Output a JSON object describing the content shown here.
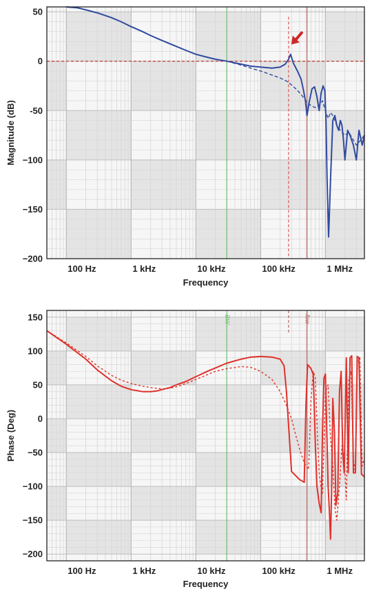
{
  "chart_data": [
    {
      "type": "line",
      "xscale": "log",
      "xlim": [
        50,
        4000000
      ],
      "ylim": [
        -200,
        55
      ],
      "xlabel": "Frequency",
      "ylabel": "Magnitude (dB)",
      "xticks": [
        {
          "value": 100,
          "label": "100 Hz"
        },
        {
          "value": 1000,
          "label": "1 kHz"
        },
        {
          "value": 10000,
          "label": "10 kHz"
        },
        {
          "value": 100000,
          "label": "100 kHz"
        },
        {
          "value": 1000000,
          "label": "1 MHz"
        }
      ],
      "yticks": [
        {
          "value": 50,
          "label": "50"
        },
        {
          "value": 0,
          "label": "0"
        },
        {
          "value": -50,
          "label": "-50"
        },
        {
          "value": -100,
          "label": "−100"
        },
        {
          "value": -150,
          "label": "−150"
        },
        {
          "value": -200,
          "label": "−200"
        }
      ],
      "grid": true,
      "reference_lines": [
        {
          "axis": "y",
          "value": 0,
          "style": "dashed",
          "color": "#c0392b"
        },
        {
          "axis": "x",
          "value": 30000,
          "style": "solid",
          "color": "#6fbf6f"
        },
        {
          "axis": "x",
          "value": 270000,
          "style": "dashed",
          "color": "#d9534f",
          "y_range": [
            -200,
            45
          ]
        },
        {
          "axis": "x",
          "value": 520000,
          "style": "solid",
          "color": "#b5645f"
        }
      ],
      "annotations": [
        {
          "type": "arrow",
          "color": "#cc2a2a",
          "x": 290000,
          "y": 12
        }
      ],
      "series": [
        {
          "style": "solid",
          "color": "#2f4aa0",
          "x": [
            100,
            150,
            200,
            300,
            500,
            700,
            1000,
            1500,
            2000,
            3000,
            5000,
            7000,
            10000,
            15000,
            20000,
            30000,
            50000,
            70000,
            100000,
            150000,
            200000,
            240000,
            270000,
            290000,
            320000,
            370000,
            420000,
            460000,
            490000,
            520000,
            560000,
            620000,
            680000,
            740000,
            800000,
            860000,
            920000,
            980000,
            1020000,
            1060000,
            1120000,
            1200000,
            1300000,
            1400000,
            1500000,
            1600000,
            1700000,
            1800000,
            1900000,
            2000000,
            2200000,
            2400000,
            2700000,
            3000000,
            3300000,
            3700000,
            4000000
          ],
          "y": [
            55,
            54,
            52,
            49,
            44,
            40,
            35,
            30,
            26,
            21,
            15,
            11,
            7,
            4,
            2,
            0,
            -3,
            -5,
            -6,
            -7,
            -6,
            -3,
            2,
            7,
            -2,
            -10,
            -18,
            -30,
            -40,
            -55,
            -42,
            -28,
            -26,
            -36,
            -50,
            -32,
            -25,
            -30,
            -60,
            -120,
            -178,
            -120,
            -60,
            -55,
            -65,
            -70,
            -60,
            -65,
            -80,
            -100,
            -70,
            -75,
            -85,
            -100,
            -70,
            -85,
            -75
          ]
        },
        {
          "style": "dashed",
          "color": "#2f4aa0",
          "x": [
            100,
            150,
            200,
            300,
            500,
            700,
            1000,
            1500,
            2000,
            3000,
            5000,
            7000,
            10000,
            15000,
            20000,
            30000,
            50000,
            70000,
            100000,
            150000,
            200000,
            250000,
            300000,
            350000,
            400000,
            450000,
            500000,
            550000,
            600000,
            700000,
            800000,
            900000,
            1000000,
            1100000,
            1200000,
            1300000,
            1500000,
            1700000,
            2000000,
            2300000,
            2700000,
            3000000,
            3500000,
            4000000
          ],
          "y": [
            55,
            54,
            52,
            49,
            44,
            40,
            35,
            30,
            26,
            21,
            15,
            11,
            7,
            4,
            2,
            0,
            -4,
            -7,
            -10,
            -14,
            -17,
            -20,
            -24,
            -28,
            -32,
            -36,
            -40,
            -43,
            -45,
            -47,
            -45,
            -40,
            -50,
            -58,
            -52,
            -55,
            -65,
            -70,
            -75,
            -72,
            -80,
            -85,
            -80,
            -75
          ]
        }
      ]
    },
    {
      "type": "line",
      "xscale": "log",
      "xlim": [
        50,
        4000000
      ],
      "ylim": [
        -210,
        160
      ],
      "xlabel": "Frequency",
      "ylabel": "Phase (Deg)",
      "xticks": [
        {
          "value": 100,
          "label": "100 Hz"
        },
        {
          "value": 1000,
          "label": "1 kHz"
        },
        {
          "value": 10000,
          "label": "10 kHz"
        },
        {
          "value": 100000,
          "label": "100 kHz"
        },
        {
          "value": 1000000,
          "label": "1 MHz"
        }
      ],
      "yticks": [
        {
          "value": 150,
          "label": "150"
        },
        {
          "value": 100,
          "label": "100"
        },
        {
          "value": 50,
          "label": "50"
        },
        {
          "value": 0,
          "label": "0"
        },
        {
          "value": -50,
          "label": "−50"
        },
        {
          "value": -100,
          "label": "−100"
        },
        {
          "value": -150,
          "label": "−150"
        },
        {
          "value": -200,
          "label": "−200"
        }
      ],
      "grid": true,
      "reference_lines": [
        {
          "axis": "x",
          "value": 30000,
          "style": "solid",
          "color": "#6fbf6f",
          "label": "BW"
        },
        {
          "axis": "x",
          "value": 270000,
          "style": "dashed",
          "color": "#b5645f",
          "y_range": [
            125,
            160
          ]
        },
        {
          "axis": "x",
          "value": 520000,
          "style": "solid",
          "color": "#b5645f",
          "label": "fsw"
        }
      ],
      "series": [
        {
          "style": "solid",
          "color": "#e0302a",
          "x": [
            50,
            100,
            200,
            300,
            500,
            700,
            1000,
            1500,
            2000,
            2500,
            3000,
            4000,
            5000,
            7000,
            10000,
            15000,
            20000,
            30000,
            50000,
            70000,
            100000,
            150000,
            200000,
            230000,
            250000,
            270000,
            300000,
            400000,
            470000,
            500000,
            530000,
            600000,
            650000,
            700000,
            740000,
            800000,
            860000,
            900000,
            950000,
            1000000,
            1050000,
            1100000,
            1150000,
            1200000,
            1250000,
            1300000,
            1380000,
            1450000,
            1550000,
            1650000,
            1750000,
            1850000,
            1950000,
            2100000,
            2250000,
            2400000,
            2550000,
            2700000,
            2900000,
            3100000,
            3300000,
            3600000,
            4000000
          ],
          "y": [
            130,
            110,
            88,
            72,
            56,
            48,
            43,
            40,
            40,
            41,
            43,
            46,
            50,
            55,
            62,
            70,
            75,
            82,
            88,
            91,
            92,
            91,
            88,
            78,
            40,
            -10,
            -78,
            -90,
            -94,
            20,
            80,
            74,
            65,
            -40,
            -100,
            -125,
            -139,
            -20,
            60,
            66,
            -20,
            -100,
            -135,
            -178,
            -100,
            30,
            -20,
            -128,
            -110,
            40,
            70,
            -50,
            -80,
            90,
            -80,
            90,
            93,
            -80,
            -80,
            92,
            90,
            -82,
            -86
          ]
        },
        {
          "style": "dashed",
          "color": "#e0302a",
          "x": [
            50,
            100,
            200,
            300,
            500,
            700,
            1000,
            1500,
            2000,
            3000,
            4000,
            5000,
            7000,
            10000,
            15000,
            20000,
            30000,
            50000,
            70000,
            100000,
            150000,
            200000,
            250000,
            300000,
            350000,
            400000,
            450000,
            500000,
            550000,
            600000,
            650000,
            700000,
            750000,
            800000,
            850000,
            900000,
            950000,
            1000000,
            1100000,
            1200000,
            1300000,
            1400000,
            1500000,
            1650000,
            1800000,
            1950000,
            2100000,
            2300000,
            2500000,
            2700000,
            2900000,
            3100000,
            3400000,
            3700000,
            4000000
          ],
          "y": [
            130,
            112,
            92,
            78,
            64,
            57,
            52,
            48,
            46,
            44,
            45,
            47,
            52,
            58,
            65,
            70,
            74,
            77,
            76,
            70,
            58,
            40,
            20,
            0,
            -25,
            -45,
            -60,
            -70,
            -75,
            30,
            70,
            60,
            -20,
            -80,
            -100,
            -110,
            -40,
            40,
            50,
            -30,
            -70,
            -130,
            -150,
            -100,
            -40,
            -60,
            -120,
            60,
            70,
            -60,
            -80,
            80,
            90,
            -70,
            -60
          ]
        }
      ]
    }
  ]
}
